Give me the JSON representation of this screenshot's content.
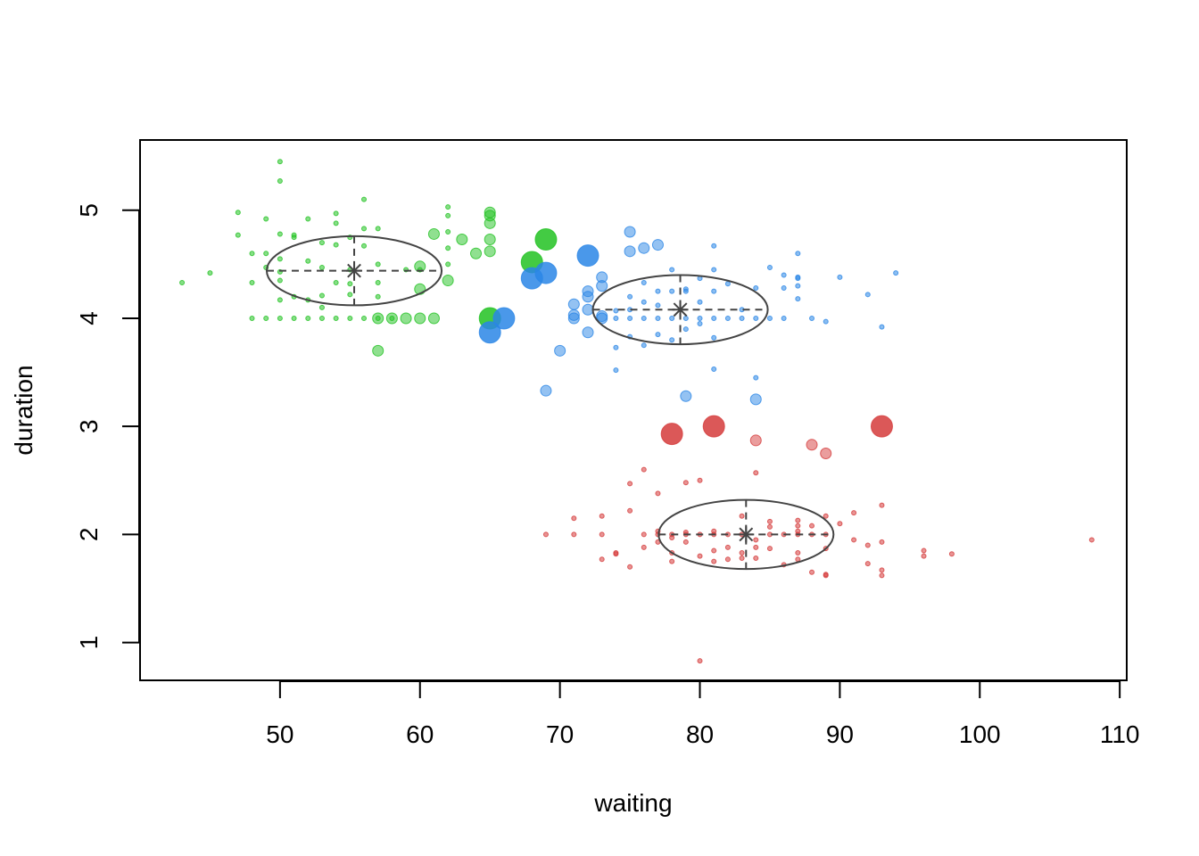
{
  "chart_data": {
    "type": "scatter",
    "title": "",
    "xlabel": "waiting",
    "ylabel": "duration",
    "xlim": [
      40.0,
      110.5
    ],
    "ylim": [
      0.65,
      5.65
    ],
    "xticks": [
      50,
      60,
      70,
      80,
      90,
      100,
      110
    ],
    "yticks": [
      1,
      2,
      3,
      4,
      5
    ],
    "grid": false,
    "legend": "none",
    "colors": {
      "green": "#22c222",
      "blue": "#2a86e6",
      "red": "#d53b3b",
      "ellipse": "#444444"
    },
    "clusters": [
      {
        "color": "green",
        "mean": [
          55.3,
          4.44
        ],
        "ellipse_radius": [
          6.25,
          0.32
        ],
        "points_small": [
          [
            43,
            4.33
          ],
          [
            45,
            4.42
          ],
          [
            47,
            4.98
          ],
          [
            47,
            4.77
          ],
          [
            48,
            4.6
          ],
          [
            48,
            4.33
          ],
          [
            48,
            4.0
          ],
          [
            49,
            4.92
          ],
          [
            49,
            4.6
          ],
          [
            49,
            4.47
          ],
          [
            49,
            4.0
          ],
          [
            50,
            5.45
          ],
          [
            50,
            5.27
          ],
          [
            50,
            4.78
          ],
          [
            50,
            4.55
          ],
          [
            50,
            4.43
          ],
          [
            50,
            4.35
          ],
          [
            50,
            4.17
          ],
          [
            50,
            4.0
          ],
          [
            51,
            4.77
          ],
          [
            51,
            4.75
          ],
          [
            51,
            4.2
          ],
          [
            51,
            4.0
          ],
          [
            52,
            4.92
          ],
          [
            52,
            4.53
          ],
          [
            52,
            4.17
          ],
          [
            52,
            4.0
          ],
          [
            53,
            4.7
          ],
          [
            53,
            4.47
          ],
          [
            53,
            4.21
          ],
          [
            53,
            4.1
          ],
          [
            53,
            4.0
          ],
          [
            54,
            4.97
          ],
          [
            54,
            4.88
          ],
          [
            54,
            4.68
          ],
          [
            54,
            4.33
          ],
          [
            54,
            4.0
          ],
          [
            55,
            4.75
          ],
          [
            55,
            4.45
          ],
          [
            55,
            4.32
          ],
          [
            55,
            4.22
          ],
          [
            55,
            4.0
          ],
          [
            56,
            5.1
          ],
          [
            56,
            4.83
          ],
          [
            56,
            4.67
          ],
          [
            56,
            4.0
          ],
          [
            57,
            4.83
          ],
          [
            57,
            4.5
          ],
          [
            57,
            4.33
          ],
          [
            57,
            4.2
          ],
          [
            57,
            4.0
          ],
          [
            58,
            4.0
          ],
          [
            59,
            4.45
          ],
          [
            60,
            4.45
          ],
          [
            62,
            5.03
          ],
          [
            62,
            4.95
          ],
          [
            62,
            4.8
          ],
          [
            62,
            4.65
          ],
          [
            62,
            4.5
          ]
        ],
        "points_medium": [
          [
            57,
            4.0
          ],
          [
            57,
            3.7
          ],
          [
            58,
            4.0
          ],
          [
            59,
            4.0
          ],
          [
            60,
            4.48
          ],
          [
            60,
            4.27
          ],
          [
            60,
            4.0
          ],
          [
            61,
            4.78
          ],
          [
            61,
            4.0
          ],
          [
            62,
            4.35
          ],
          [
            63,
            4.73
          ],
          [
            64,
            4.6
          ],
          [
            65,
            4.98
          ],
          [
            65,
            4.95
          ],
          [
            65,
            4.88
          ],
          [
            65,
            4.73
          ],
          [
            65,
            4.62
          ]
        ],
        "points_large": [
          [
            65,
            4.0
          ],
          [
            68,
            4.52
          ],
          [
            69,
            4.73
          ]
        ]
      },
      {
        "color": "blue",
        "mean": [
          78.6,
          4.08
        ],
        "ellipse_radius": [
          6.25,
          0.32
        ],
        "points_small": [
          [
            74,
            4.07
          ],
          [
            74,
            4.0
          ],
          [
            74,
            3.73
          ],
          [
            74,
            3.52
          ],
          [
            75,
            4.2
          ],
          [
            75,
            4.08
          ],
          [
            75,
            4.0
          ],
          [
            75,
            3.83
          ],
          [
            76,
            4.33
          ],
          [
            76,
            4.15
          ],
          [
            76,
            4.0
          ],
          [
            76,
            3.75
          ],
          [
            77,
            4.25
          ],
          [
            77,
            4.12
          ],
          [
            77,
            4.0
          ],
          [
            77,
            3.85
          ],
          [
            78,
            4.45
          ],
          [
            78,
            4.25
          ],
          [
            78,
            4.0
          ],
          [
            78,
            3.8
          ],
          [
            79,
            4.27
          ],
          [
            79,
            4.25
          ],
          [
            79,
            4.0
          ],
          [
            79,
            3.9
          ],
          [
            80,
            4.37
          ],
          [
            80,
            4.15
          ],
          [
            80,
            4.0
          ],
          [
            80,
            3.95
          ],
          [
            81,
            4.67
          ],
          [
            81,
            4.45
          ],
          [
            81,
            4.25
          ],
          [
            81,
            4.0
          ],
          [
            81,
            3.82
          ],
          [
            81,
            3.53
          ],
          [
            82,
            4.32
          ],
          [
            82,
            4.0
          ],
          [
            83,
            4.08
          ],
          [
            83,
            4.0
          ],
          [
            84,
            4.28
          ],
          [
            84,
            4.0
          ],
          [
            84,
            3.45
          ],
          [
            85,
            4.47
          ],
          [
            85,
            4.0
          ],
          [
            86,
            4.4
          ],
          [
            86,
            4.28
          ],
          [
            86,
            4.0
          ],
          [
            87,
            4.6
          ],
          [
            87,
            4.38
          ],
          [
            87,
            4.37
          ],
          [
            87,
            4.3
          ],
          [
            87,
            4.18
          ],
          [
            88,
            4.0
          ],
          [
            89,
            3.97
          ],
          [
            90,
            4.38
          ],
          [
            92,
            4.22
          ],
          [
            93,
            3.92
          ],
          [
            94,
            4.42
          ]
        ],
        "points_medium": [
          [
            69,
            3.33
          ],
          [
            70,
            3.7
          ],
          [
            71,
            4.13
          ],
          [
            71,
            4.03
          ],
          [
            71,
            4.0
          ],
          [
            72,
            4.25
          ],
          [
            72,
            4.2
          ],
          [
            72,
            4.08
          ],
          [
            72,
            3.87
          ],
          [
            73,
            4.38
          ],
          [
            73,
            4.3
          ],
          [
            73,
            4.02
          ],
          [
            73,
            4.0
          ],
          [
            75,
            4.8
          ],
          [
            75,
            4.62
          ],
          [
            76,
            4.65
          ],
          [
            77,
            4.68
          ],
          [
            79,
            3.28
          ],
          [
            84,
            3.25
          ]
        ],
        "points_large": [
          [
            65,
            3.87
          ],
          [
            66,
            4.0
          ],
          [
            68,
            4.37
          ],
          [
            69,
            4.42
          ],
          [
            72,
            4.58
          ]
        ]
      },
      {
        "color": "red",
        "mean": [
          83.3,
          2.0
        ],
        "ellipse_radius": [
          6.25,
          0.32
        ],
        "points_small": [
          [
            69,
            2.0
          ],
          [
            71,
            2.15
          ],
          [
            71,
            2.0
          ],
          [
            73,
            2.17
          ],
          [
            73,
            2.0
          ],
          [
            73,
            1.77
          ],
          [
            74,
            1.83
          ],
          [
            74,
            1.82
          ],
          [
            75,
            2.47
          ],
          [
            75,
            2.22
          ],
          [
            75,
            1.7
          ],
          [
            76,
            2.6
          ],
          [
            76,
            2.0
          ],
          [
            76,
            1.88
          ],
          [
            77,
            2.38
          ],
          [
            77,
            2.03
          ],
          [
            77,
            2.0
          ],
          [
            77,
            1.93
          ],
          [
            78,
            2.0
          ],
          [
            78,
            1.97
          ],
          [
            78,
            1.83
          ],
          [
            78,
            1.75
          ],
          [
            79,
            2.48
          ],
          [
            79,
            2.02
          ],
          [
            79,
            2.0
          ],
          [
            79,
            1.93
          ],
          [
            80,
            2.5
          ],
          [
            80,
            2.0
          ],
          [
            80,
            1.8
          ],
          [
            80,
            0.83
          ],
          [
            81,
            2.03
          ],
          [
            81,
            2.0
          ],
          [
            81,
            1.85
          ],
          [
            81,
            1.75
          ],
          [
            82,
            2.0
          ],
          [
            82,
            1.88
          ],
          [
            82,
            1.77
          ],
          [
            83,
            2.17
          ],
          [
            83,
            2.0
          ],
          [
            83,
            1.83
          ],
          [
            83,
            1.78
          ],
          [
            84,
            2.57
          ],
          [
            84,
            1.95
          ],
          [
            84,
            1.88
          ],
          [
            84,
            1.78
          ],
          [
            85,
            2.12
          ],
          [
            85,
            2.07
          ],
          [
            85,
            2.0
          ],
          [
            85,
            1.87
          ],
          [
            86,
            2.0
          ],
          [
            86,
            1.72
          ],
          [
            87,
            2.13
          ],
          [
            87,
            2.08
          ],
          [
            87,
            2.03
          ],
          [
            87,
            2.0
          ],
          [
            87,
            1.83
          ],
          [
            87,
            1.77
          ],
          [
            88,
            2.08
          ],
          [
            88,
            2.0
          ],
          [
            88,
            1.65
          ],
          [
            89,
            2.17
          ],
          [
            89,
            2.0
          ],
          [
            89,
            1.87
          ],
          [
            89,
            1.63
          ],
          [
            89,
            1.62
          ],
          [
            90,
            2.1
          ],
          [
            91,
            2.2
          ],
          [
            91,
            1.95
          ],
          [
            92,
            1.9
          ],
          [
            92,
            1.73
          ],
          [
            93,
            2.27
          ],
          [
            93,
            1.93
          ],
          [
            93,
            1.67
          ],
          [
            93,
            1.62
          ],
          [
            96,
            1.85
          ],
          [
            96,
            1.8
          ],
          [
            98,
            1.82
          ],
          [
            108,
            1.95
          ]
        ],
        "points_medium": [
          [
            84,
            2.87
          ],
          [
            88,
            2.83
          ],
          [
            89,
            2.75
          ]
        ],
        "points_large": [
          [
            78,
            2.93
          ],
          [
            81,
            3.0
          ],
          [
            93,
            3.0
          ]
        ]
      }
    ]
  }
}
